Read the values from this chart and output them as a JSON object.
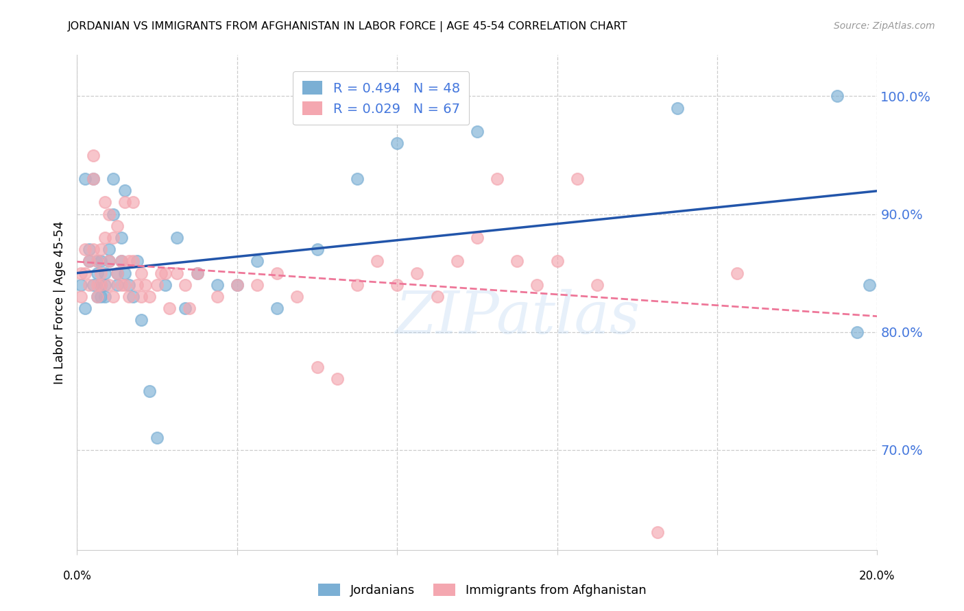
{
  "title": "JORDANIAN VS IMMIGRANTS FROM AFGHANISTAN IN LABOR FORCE | AGE 45-54 CORRELATION CHART",
  "source": "Source: ZipAtlas.com",
  "ylabel": "In Labor Force | Age 45-54",
  "y_ticks": [
    0.7,
    0.8,
    0.9,
    1.0
  ],
  "y_tick_labels": [
    "70.0%",
    "80.0%",
    "90.0%",
    "100.0%"
  ],
  "x_ticks": [
    0.0,
    0.04,
    0.08,
    0.12,
    0.16,
    0.2
  ],
  "x_tick_labels": [
    "",
    "",
    "",
    "",
    "",
    ""
  ],
  "x_range": [
    0.0,
    0.2
  ],
  "y_range": [
    0.615,
    1.035
  ],
  "legend1_r": "R = 0.494",
  "legend1_n": "N = 48",
  "legend2_r": "R = 0.029",
  "legend2_n": "N = 67",
  "blue_color": "#7BAFD4",
  "pink_color": "#F4A7B0",
  "line_blue": "#2255AA",
  "line_pink": "#EE7799",
  "watermark_text": "ZIPatlas",
  "legend_label1": "Jordanians",
  "legend_label2": "Immigrants from Afghanistan",
  "blue_x": [
    0.001,
    0.002,
    0.002,
    0.003,
    0.003,
    0.004,
    0.004,
    0.005,
    0.005,
    0.005,
    0.006,
    0.006,
    0.006,
    0.007,
    0.007,
    0.007,
    0.008,
    0.008,
    0.009,
    0.009,
    0.01,
    0.01,
    0.011,
    0.011,
    0.012,
    0.012,
    0.013,
    0.014,
    0.015,
    0.016,
    0.018,
    0.02,
    0.022,
    0.025,
    0.027,
    0.03,
    0.035,
    0.04,
    0.045,
    0.05,
    0.06,
    0.07,
    0.08,
    0.1,
    0.15,
    0.19,
    0.195,
    0.198
  ],
  "blue_y": [
    0.84,
    0.82,
    0.93,
    0.87,
    0.86,
    0.84,
    0.93,
    0.85,
    0.83,
    0.86,
    0.84,
    0.83,
    0.86,
    0.85,
    0.84,
    0.83,
    0.87,
    0.86,
    0.93,
    0.9,
    0.84,
    0.85,
    0.88,
    0.86,
    0.92,
    0.85,
    0.84,
    0.83,
    0.86,
    0.81,
    0.75,
    0.71,
    0.84,
    0.88,
    0.82,
    0.85,
    0.84,
    0.84,
    0.86,
    0.82,
    0.87,
    0.93,
    0.96,
    0.97,
    0.99,
    1.0,
    0.8,
    0.84
  ],
  "pink_x": [
    0.001,
    0.001,
    0.002,
    0.002,
    0.003,
    0.003,
    0.004,
    0.004,
    0.004,
    0.005,
    0.005,
    0.005,
    0.006,
    0.006,
    0.006,
    0.007,
    0.007,
    0.008,
    0.008,
    0.008,
    0.009,
    0.009,
    0.01,
    0.01,
    0.011,
    0.011,
    0.012,
    0.012,
    0.013,
    0.013,
    0.014,
    0.014,
    0.015,
    0.016,
    0.016,
    0.017,
    0.018,
    0.02,
    0.021,
    0.022,
    0.023,
    0.025,
    0.027,
    0.028,
    0.03,
    0.035,
    0.04,
    0.045,
    0.05,
    0.055,
    0.06,
    0.065,
    0.07,
    0.075,
    0.08,
    0.085,
    0.09,
    0.095,
    0.1,
    0.105,
    0.11,
    0.115,
    0.12,
    0.125,
    0.13,
    0.145,
    0.165
  ],
  "pink_y": [
    0.85,
    0.83,
    0.87,
    0.85,
    0.84,
    0.86,
    0.93,
    0.95,
    0.87,
    0.84,
    0.86,
    0.83,
    0.87,
    0.84,
    0.85,
    0.91,
    0.88,
    0.9,
    0.84,
    0.86,
    0.88,
    0.83,
    0.85,
    0.89,
    0.84,
    0.86,
    0.91,
    0.84,
    0.86,
    0.83,
    0.91,
    0.86,
    0.84,
    0.85,
    0.83,
    0.84,
    0.83,
    0.84,
    0.85,
    0.85,
    0.82,
    0.85,
    0.84,
    0.82,
    0.85,
    0.83,
    0.84,
    0.84,
    0.85,
    0.83,
    0.77,
    0.76,
    0.84,
    0.86,
    0.84,
    0.85,
    0.83,
    0.86,
    0.88,
    0.93,
    0.86,
    0.84,
    0.86,
    0.93,
    0.84,
    0.63,
    0.85
  ],
  "tick_color": "#4477DD",
  "grid_color": "#CCCCCC",
  "spine_color": "#CCCCCC"
}
